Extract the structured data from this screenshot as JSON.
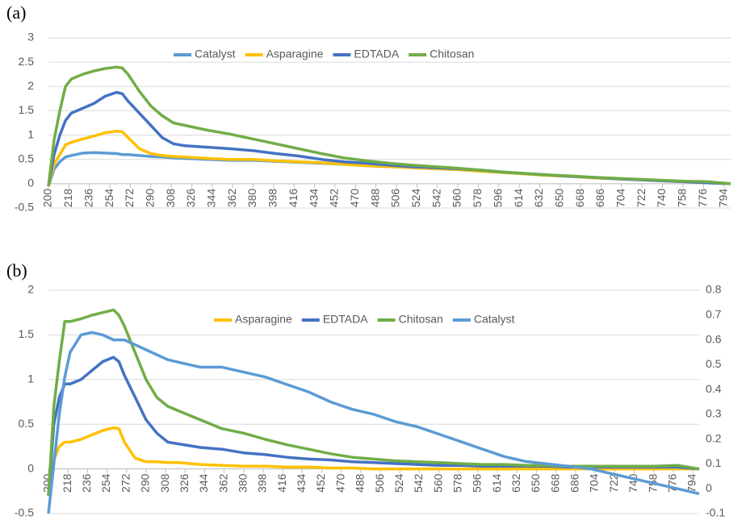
{
  "chart_data": [
    {
      "type": "line",
      "label": "(a)",
      "x": [
        200,
        205,
        210,
        215,
        220,
        230,
        240,
        250,
        260,
        265,
        270,
        280,
        290,
        300,
        310,
        320,
        340,
        360,
        380,
        400,
        420,
        440,
        460,
        480,
        500,
        520,
        540,
        560,
        580,
        600,
        620,
        640,
        660,
        680,
        700,
        720,
        740,
        760,
        780,
        800
      ],
      "xlim": [
        200,
        800
      ],
      "xticks": [
        200,
        218,
        236,
        254,
        272,
        290,
        308,
        326,
        344,
        362,
        380,
        398,
        416,
        434,
        452,
        470,
        488,
        506,
        524,
        542,
        560,
        578,
        596,
        614,
        632,
        650,
        668,
        686,
        704,
        722,
        740,
        758,
        776,
        794
      ],
      "ylim": [
        -0.5,
        3
      ],
      "yticks": [
        -0.5,
        0,
        0.5,
        1,
        1.5,
        2,
        2.5,
        3
      ],
      "grid": true,
      "series": [
        {
          "name": "Catalyst",
          "color": "#5b9bd5",
          "values": [
            -0.05,
            0.3,
            0.45,
            0.55,
            0.58,
            0.63,
            0.64,
            0.63,
            0.62,
            0.6,
            0.6,
            0.58,
            0.56,
            0.55,
            0.53,
            0.52,
            0.5,
            0.48,
            0.48,
            0.46,
            0.44,
            0.42,
            0.4,
            0.37,
            0.35,
            0.33,
            0.31,
            0.29,
            0.26,
            0.23,
            0.2,
            0.17,
            0.15,
            0.12,
            0.1,
            0.08,
            0.06,
            0.04,
            0.02,
            0.0
          ]
        },
        {
          "name": "Asparagine",
          "color": "#ffc000",
          "values": [
            -0.05,
            0.4,
            0.6,
            0.8,
            0.85,
            0.92,
            0.98,
            1.05,
            1.08,
            1.07,
            0.95,
            0.72,
            0.62,
            0.58,
            0.56,
            0.55,
            0.52,
            0.5,
            0.5,
            0.47,
            0.45,
            0.43,
            0.4,
            0.37,
            0.35,
            0.33,
            0.31,
            0.29,
            0.26,
            0.23,
            0.2,
            0.17,
            0.15,
            0.12,
            0.1,
            0.08,
            0.06,
            0.04,
            0.02,
            0.0
          ]
        },
        {
          "name": "EDTADA",
          "color": "#4472c4",
          "values": [
            -0.05,
            0.6,
            1.0,
            1.3,
            1.45,
            1.55,
            1.65,
            1.8,
            1.88,
            1.85,
            1.7,
            1.45,
            1.2,
            0.95,
            0.82,
            0.78,
            0.75,
            0.72,
            0.68,
            0.62,
            0.57,
            0.5,
            0.45,
            0.42,
            0.38,
            0.35,
            0.33,
            0.31,
            0.28,
            0.24,
            0.21,
            0.18,
            0.15,
            0.13,
            0.1,
            0.08,
            0.06,
            0.04,
            0.02,
            0.0
          ]
        },
        {
          "name": "Chitosan",
          "color": "#70ad47",
          "values": [
            -0.05,
            0.9,
            1.5,
            2.0,
            2.15,
            2.25,
            2.32,
            2.37,
            2.4,
            2.38,
            2.25,
            1.9,
            1.6,
            1.4,
            1.25,
            1.2,
            1.1,
            1.02,
            0.92,
            0.82,
            0.72,
            0.62,
            0.53,
            0.47,
            0.42,
            0.38,
            0.35,
            0.32,
            0.28,
            0.24,
            0.21,
            0.18,
            0.16,
            0.13,
            0.11,
            0.09,
            0.07,
            0.05,
            0.04,
            0.0
          ]
        }
      ]
    },
    {
      "type": "line",
      "label": "(b)",
      "x": [
        200,
        205,
        210,
        215,
        220,
        230,
        240,
        250,
        260,
        265,
        270,
        280,
        290,
        300,
        310,
        320,
        340,
        360,
        380,
        400,
        420,
        440,
        460,
        480,
        500,
        520,
        540,
        560,
        580,
        600,
        620,
        640,
        660,
        680,
        700,
        720,
        740,
        760,
        780,
        800
      ],
      "xlim": [
        200,
        800
      ],
      "xticks": [
        200,
        218,
        236,
        254,
        272,
        290,
        308,
        326,
        344,
        362,
        380,
        398,
        416,
        434,
        452,
        470,
        488,
        506,
        524,
        542,
        560,
        578,
        596,
        614,
        632,
        650,
        668,
        686,
        704,
        722,
        740,
        758,
        776,
        794
      ],
      "ylim": [
        -0.5,
        2
      ],
      "yticks": [
        -0.5,
        0,
        0.5,
        1,
        1.5,
        2
      ],
      "y2lim": [
        -0.1,
        0.8
      ],
      "y2ticks": [
        -0.1,
        0,
        0.1,
        0.2,
        0.3,
        0.4,
        0.5,
        0.6,
        0.7,
        0.8
      ],
      "grid": true,
      "series": [
        {
          "name": "Asparagine",
          "color": "#ffc000",
          "values": [
            -0.3,
            0.1,
            0.25,
            0.3,
            0.3,
            0.33,
            0.38,
            0.43,
            0.46,
            0.45,
            0.3,
            0.12,
            0.08,
            0.08,
            0.07,
            0.07,
            0.05,
            0.04,
            0.03,
            0.03,
            0.02,
            0.02,
            0.01,
            0.01,
            0.0,
            0.0,
            0.0,
            0.0,
            0.0,
            0.0,
            0.0,
            0.0,
            0.0,
            0.0,
            0.0,
            0.0,
            0.0,
            0.0,
            0.0,
            0.0
          ]
        },
        {
          "name": "EDTADA",
          "color": "#4472c4",
          "values": [
            -0.3,
            0.5,
            0.8,
            0.95,
            0.95,
            1.0,
            1.1,
            1.2,
            1.25,
            1.2,
            1.05,
            0.8,
            0.55,
            0.4,
            0.3,
            0.28,
            0.24,
            0.22,
            0.18,
            0.16,
            0.13,
            0.11,
            0.1,
            0.08,
            0.07,
            0.06,
            0.05,
            0.04,
            0.04,
            0.03,
            0.03,
            0.03,
            0.03,
            0.02,
            0.02,
            0.02,
            0.02,
            0.02,
            0.02,
            0.0
          ]
        },
        {
          "name": "Chitosan",
          "color": "#70ad47",
          "values": [
            -0.3,
            0.7,
            1.2,
            1.65,
            1.65,
            1.68,
            1.72,
            1.75,
            1.78,
            1.72,
            1.6,
            1.3,
            1.0,
            0.8,
            0.7,
            0.65,
            0.55,
            0.45,
            0.4,
            0.33,
            0.27,
            0.22,
            0.17,
            0.13,
            0.11,
            0.09,
            0.08,
            0.07,
            0.06,
            0.05,
            0.05,
            0.04,
            0.04,
            0.03,
            0.03,
            0.03,
            0.03,
            0.03,
            0.04,
            0.0
          ]
        },
        {
          "name": "Catalyst",
          "color": "#5b9bd5",
          "axis": "y2",
          "values": [
            -0.1,
            0.1,
            0.3,
            0.45,
            0.55,
            0.62,
            0.63,
            0.62,
            0.6,
            0.6,
            0.6,
            0.58,
            0.56,
            0.54,
            0.52,
            0.51,
            0.49,
            0.49,
            0.47,
            0.45,
            0.42,
            0.39,
            0.35,
            0.32,
            0.3,
            0.27,
            0.25,
            0.22,
            0.19,
            0.16,
            0.13,
            0.11,
            0.1,
            0.09,
            0.08,
            0.06,
            0.04,
            0.02,
            0.0,
            -0.02
          ]
        }
      ]
    }
  ]
}
